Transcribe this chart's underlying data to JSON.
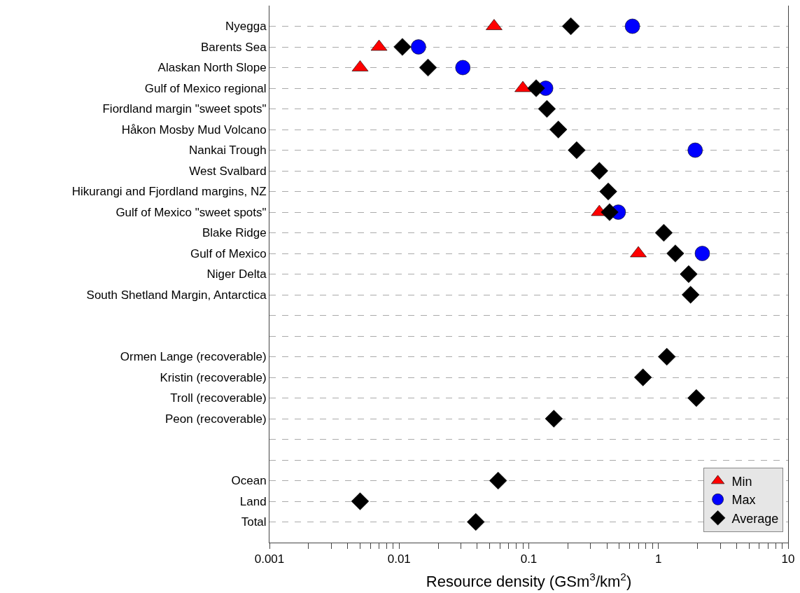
{
  "chart_data": {
    "type": "scatter",
    "orientation": "horizontal",
    "xlabel": "Resource density (GSm$^{3}$/km$^{2}$)",
    "categories": [
      "Nyegga",
      "Barents Sea",
      "Alaskan North Slope",
      "Gulf of Mexico regional",
      "Fiordland margin \"sweet spots\"",
      "Håkon Mosby Mud Volcano",
      "Nankai Trough",
      "West Svalbard",
      "Hikurangi and Fjordland margins, NZ",
      "Gulf of Mexico \"sweet spots\"",
      "Blake Ridge",
      "Gulf of Mexico",
      "Niger Delta",
      "South Shetland Margin, Antarctica",
      null,
      null,
      "Ormen Lange (recoverable)",
      "Kristin (recoverable)",
      "Troll (recoverable)",
      "Peon (recoverable)",
      null,
      null,
      "Ocean",
      "Land",
      "Total"
    ],
    "log": "x",
    "xlim": [
      0.001,
      10
    ],
    "xticks": [
      0.001,
      {
        "value": 0.002,
        "label": null
      },
      {
        "value": 0.003,
        "label": null
      },
      {
        "value": 0.004,
        "label": null
      },
      {
        "value": 0.005,
        "label": null
      },
      {
        "value": 0.006,
        "label": null
      },
      {
        "value": 0.007,
        "label": null
      },
      {
        "value": 0.008,
        "label": null
      },
      {
        "value": 0.009,
        "label": null
      },
      0.01,
      {
        "value": 0.02,
        "label": null
      },
      {
        "value": 0.03,
        "label": null
      },
      {
        "value": 0.04,
        "label": null
      },
      {
        "value": 0.05,
        "label": null
      },
      {
        "value": 0.06,
        "label": null
      },
      {
        "value": 0.07,
        "label": null
      },
      {
        "value": 0.08,
        "label": null
      },
      {
        "value": 0.09,
        "label": null
      },
      0.1,
      {
        "value": 0.2,
        "label": null
      },
      {
        "value": 0.3,
        "label": null
      },
      {
        "value": 0.4,
        "label": null
      },
      {
        "value": 0.5,
        "label": null
      },
      {
        "value": 0.6,
        "label": null
      },
      {
        "value": 0.7,
        "label": null
      },
      {
        "value": 0.8,
        "label": null
      },
      {
        "value": 0.9,
        "label": null
      },
      1,
      {
        "value": 2,
        "label": null
      },
      {
        "value": 3,
        "label": null
      },
      {
        "value": 4,
        "label": null
      },
      {
        "value": 5,
        "label": null
      },
      {
        "value": 6,
        "label": null
      },
      {
        "value": 7,
        "label": null
      },
      {
        "value": 8,
        "label": null
      },
      {
        "value": 9,
        "label": null
      },
      10
    ],
    "grid": "y",
    "legend": "bottom right",
    "series": [
      {
        "name": "Min",
        "color": "#ff0000",
        "marker": "triangle",
        "values": [
          0.054,
          0.007,
          0.005,
          0.09,
          null,
          null,
          null,
          null,
          null,
          0.35,
          null,
          0.7,
          null,
          null,
          null,
          null,
          null,
          null,
          null,
          null,
          null,
          null,
          null,
          null,
          null
        ]
      },
      {
        "name": "Max",
        "color": "#0000ff",
        "marker": "circle",
        "values": [
          0.63,
          0.0141,
          0.031,
          0.135,
          null,
          null,
          1.92,
          null,
          null,
          0.49,
          null,
          2.18,
          null,
          null,
          null,
          null,
          null,
          null,
          null,
          null,
          null,
          null,
          null,
          null,
          null
        ]
      },
      {
        "name": "Average",
        "color": "#000000",
        "marker": "diamond",
        "values": [
          0.211,
          0.0106,
          0.0167,
          0.114,
          0.138,
          0.169,
          0.234,
          0.35,
          0.41,
          0.42,
          1.1,
          1.35,
          1.71,
          1.77,
          null,
          null,
          1.16,
          0.76,
          1.96,
          0.156,
          null,
          null,
          0.058,
          0.005,
          0.039
        ]
      }
    ]
  }
}
